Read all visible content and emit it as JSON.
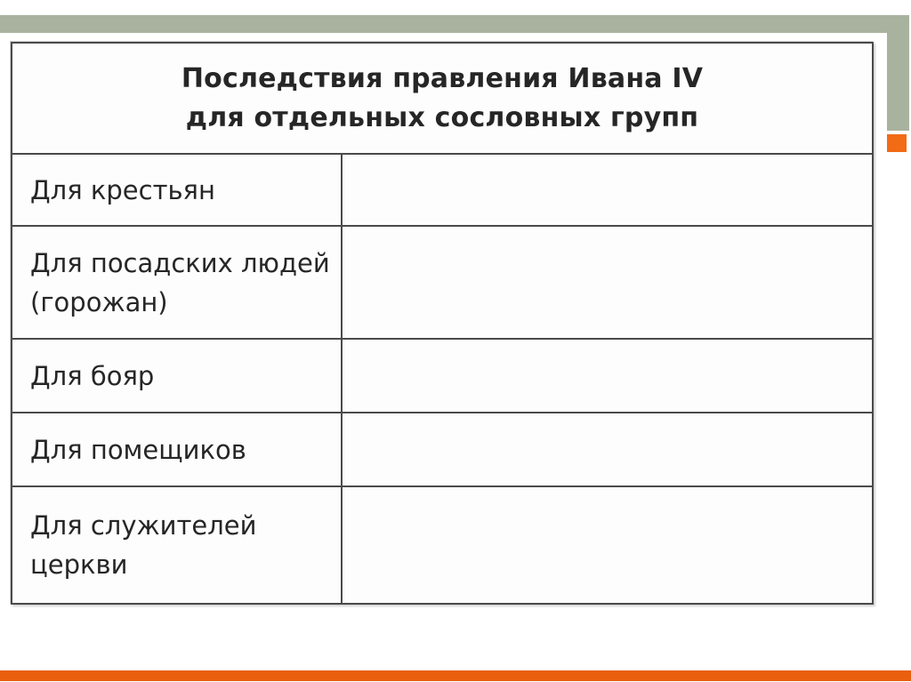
{
  "slide": {
    "colors": {
      "accent_green": "#a9b29f",
      "accent_orange": "#f26b15",
      "bottom_bar_orange": "#e95f0e",
      "table_border_gray": "#4a4a4a",
      "text_color": "#262626",
      "background": "#ffffff"
    }
  },
  "table": {
    "title": "Последствия правления Ивана IV\nдля отдельных сословных групп",
    "rows": [
      {
        "label": "Для крестьян",
        "value": ""
      },
      {
        "label": "Для посадских людей\n(горожан)",
        "value": ""
      },
      {
        "label": "Для бояр",
        "value": ""
      },
      {
        "label": "Для помещиков",
        "value": ""
      },
      {
        "label": "Для служителей\nцеркви",
        "value": ""
      }
    ]
  }
}
